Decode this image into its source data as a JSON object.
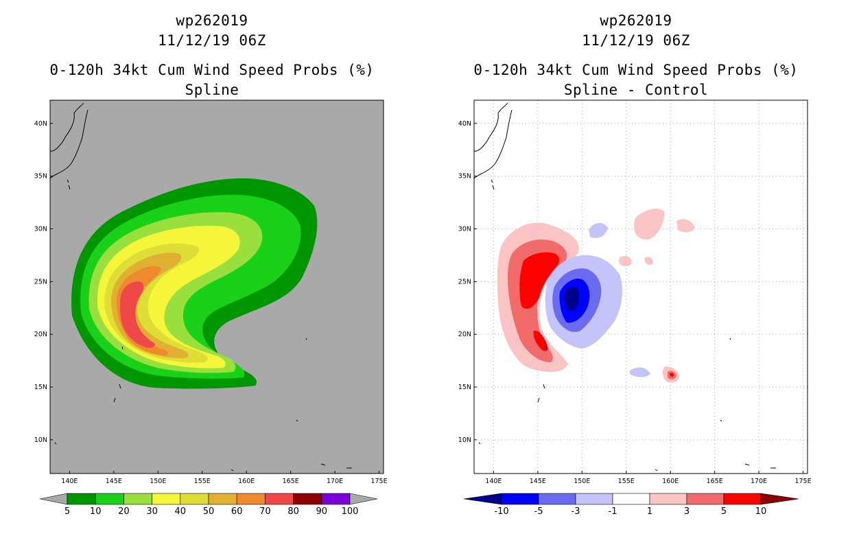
{
  "chart_data": [
    {
      "type": "heatmap",
      "title": [
        "wp262019",
        "11/12/19 06Z",
        "0-120h 34kt Cum Wind Speed Probs (%)",
        "Spline"
      ],
      "x_ticks": [
        "140E",
        "145E",
        "150E",
        "155E",
        "160E",
        "165E",
        "170E",
        "175E"
      ],
      "y_ticks": [
        "40N",
        "35N",
        "30N",
        "25N",
        "20N",
        "15N",
        "10N"
      ],
      "xlim": [
        137.8,
        175.5
      ],
      "ylim": [
        6.8,
        42.2
      ],
      "grid": false,
      "background_color": "#A9A9A9",
      "colorbar": {
        "labels": [
          "5",
          "10",
          "20",
          "30",
          "40",
          "50",
          "60",
          "70",
          "80",
          "90",
          "100"
        ],
        "colors": [
          "#009600",
          "#19D119",
          "#99E03F",
          "#F5F53A",
          "#DEDE36",
          "#E0B033",
          "#EE8A2D",
          "#F04848",
          "#8B0000",
          "#7B00D9"
        ],
        "extend": "both"
      }
    },
    {
      "type": "heatmap",
      "title": [
        "wp262019",
        "11/12/19 06Z",
        "0-120h 34kt Cum Wind Speed Probs (%)",
        "Spline - Control"
      ],
      "x_ticks": [
        "140E",
        "145E",
        "150E",
        "155E",
        "160E",
        "165E",
        "170E",
        "175E"
      ],
      "y_ticks": [
        "40N",
        "35N",
        "30N",
        "25N",
        "20N",
        "15N",
        "10N"
      ],
      "xlim": [
        137.8,
        175.5
      ],
      "ylim": [
        6.8,
        42.2
      ],
      "grid": true,
      "background_color": "#FFFFFF",
      "colorbar": {
        "labels": [
          "-10",
          "-5",
          "-3",
          "-1",
          "1",
          "3",
          "5",
          "10"
        ],
        "colors": [
          "#00008B",
          "#0000FF",
          "#6B6BF0",
          "#C4C4FA",
          "#FFFFFF",
          "#FAC4C4",
          "#F26B6B",
          "#FF0000",
          "#8B0000"
        ],
        "extend": "both"
      }
    }
  ]
}
